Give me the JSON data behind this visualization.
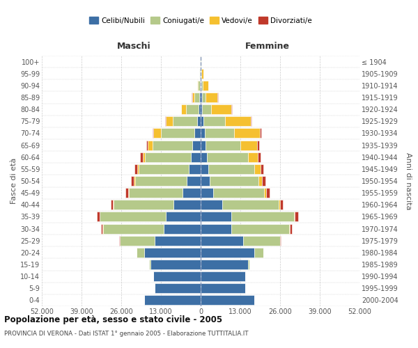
{
  "age_groups": [
    "0-4",
    "5-9",
    "10-14",
    "15-19",
    "20-24",
    "25-29",
    "30-34",
    "35-39",
    "40-44",
    "45-49",
    "50-54",
    "55-59",
    "60-64",
    "65-69",
    "70-74",
    "75-79",
    "80-84",
    "85-89",
    "90-94",
    "95-99",
    "100+"
  ],
  "birth_years": [
    "2000-2004",
    "1995-1999",
    "1990-1994",
    "1985-1989",
    "1980-1984",
    "1975-1979",
    "1970-1974",
    "1965-1969",
    "1960-1964",
    "1955-1959",
    "1950-1954",
    "1945-1949",
    "1940-1944",
    "1935-1939",
    "1930-1934",
    "1925-1929",
    "1920-1924",
    "1915-1919",
    "1910-1914",
    "1905-1909",
    "≤ 1904"
  ],
  "maschi_celibi": [
    18500,
    15000,
    15500,
    16500,
    18500,
    15000,
    12000,
    11500,
    9000,
    6000,
    4500,
    3800,
    3200,
    2800,
    2000,
    1200,
    700,
    500,
    300,
    150,
    80
  ],
  "maschi_coniugati": [
    0,
    0,
    50,
    400,
    2500,
    11500,
    20000,
    21500,
    19500,
    17500,
    17000,
    16500,
    15000,
    13000,
    11000,
    8000,
    4000,
    1600,
    600,
    200,
    80
  ],
  "maschi_vedovi": [
    0,
    0,
    0,
    0,
    30,
    50,
    100,
    100,
    150,
    200,
    300,
    500,
    800,
    1500,
    2500,
    2200,
    1600,
    700,
    250,
    80,
    30
  ],
  "maschi_divorziati": [
    0,
    0,
    0,
    0,
    50,
    150,
    450,
    900,
    700,
    900,
    950,
    950,
    900,
    600,
    350,
    200,
    100,
    100,
    30,
    0,
    0
  ],
  "femmine_nubili": [
    17500,
    14500,
    14500,
    15500,
    17500,
    14000,
    10000,
    10000,
    7000,
    4200,
    3000,
    2500,
    2000,
    1500,
    1400,
    900,
    500,
    350,
    200,
    100,
    60
  ],
  "femmine_coniugate": [
    0,
    0,
    50,
    400,
    3000,
    12000,
    19000,
    20500,
    18500,
    16500,
    16000,
    15000,
    13500,
    11500,
    9500,
    7000,
    3000,
    1200,
    500,
    150,
    60
  ],
  "femmine_vedove": [
    0,
    0,
    0,
    0,
    50,
    100,
    200,
    300,
    500,
    700,
    1100,
    2000,
    3200,
    5500,
    8500,
    8500,
    6500,
    4000,
    1800,
    600,
    200
  ],
  "femmine_divorziate": [
    0,
    0,
    0,
    0,
    60,
    200,
    650,
    1050,
    1000,
    1100,
    1150,
    1100,
    1000,
    700,
    400,
    200,
    150,
    100,
    30,
    0,
    0
  ],
  "color_celibi": "#3d6fa5",
  "color_coniugati": "#b5c98a",
  "color_vedovi": "#f5c030",
  "color_divorziati": "#c0392b",
  "xlim": 52000,
  "xtick_labels": [
    "52.000",
    "39.000",
    "26.000",
    "13.000",
    "0",
    "13.000",
    "26.000",
    "39.000",
    "52.000"
  ],
  "title": "Popolazione per età, sesso e stato civile - 2005",
  "subtitle": "PROVINCIA DI VERONA - Dati ISTAT 1° gennaio 2005 - Elaborazione TUTTITALIA.IT",
  "ylabel_left": "Fasce di età",
  "ylabel_right": "Anni di nascita",
  "legend_labels": [
    "Celibi/Nubili",
    "Coniugati/e",
    "Vedovi/e",
    "Divorziati/e"
  ],
  "maschi_label": "Maschi",
  "femmine_label": "Femmine",
  "bg_color": "#ffffff",
  "grid_color": "#cccccc",
  "bar_edge_color": "white",
  "bar_height": 0.82
}
